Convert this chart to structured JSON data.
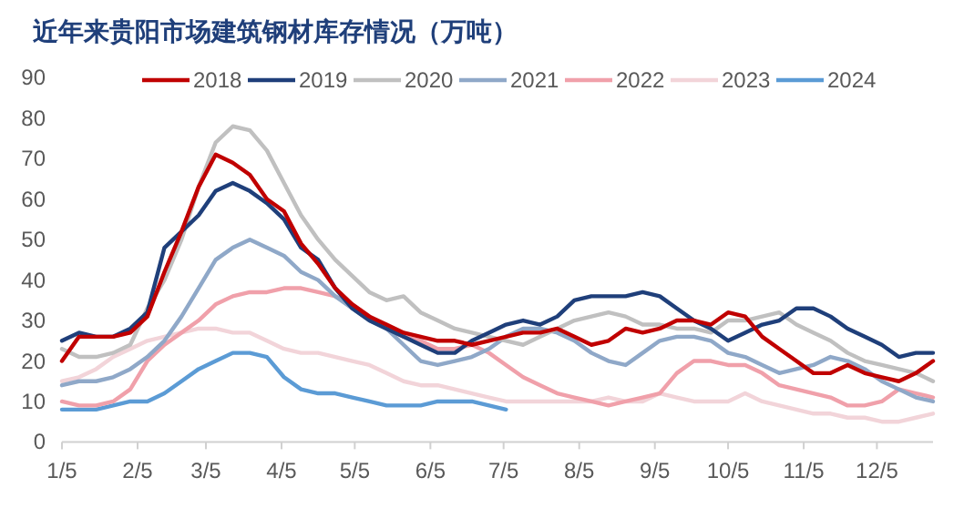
{
  "chart_data": {
    "type": "line",
    "title": "近年来贵阳市场建筑钢材库存情况（万吨）",
    "x": [
      "--01-05",
      "--01-12",
      "--01-19",
      "--01-26",
      "--02-02",
      "--02-09",
      "--02-16",
      "--02-23",
      "--03-02",
      "--03-09",
      "--03-16",
      "--03-23",
      "--03-30",
      "--04-06",
      "--04-13",
      "--04-20",
      "--04-27",
      "--05-04",
      "--05-11",
      "--05-18",
      "--05-25",
      "--06-01",
      "--06-08",
      "--06-15",
      "--06-22",
      "--06-29",
      "--07-06",
      "--07-13",
      "--07-20",
      "--07-27",
      "--08-03",
      "--08-10",
      "--08-17",
      "--08-24",
      "--08-31",
      "--09-07",
      "--09-14",
      "--09-21",
      "--09-28",
      "--10-05",
      "--10-12",
      "--10-19",
      "--10-26",
      "--11-02",
      "--11-09",
      "--11-16",
      "--11-23",
      "--11-30",
      "--12-07",
      "--12-14",
      "--12-21",
      "--12-28"
    ],
    "series": [
      {
        "name": "2018",
        "color": "#c00000",
        "values": [
          20,
          26,
          26,
          26,
          27,
          31,
          42,
          52,
          63,
          71,
          69,
          66,
          60,
          57,
          49,
          44,
          38,
          34,
          31,
          29,
          27,
          26,
          25,
          25,
          24,
          25,
          26,
          27,
          27,
          28,
          26,
          24,
          25,
          28,
          27,
          28,
          30,
          30,
          29,
          32,
          31,
          26,
          23,
          20,
          17,
          17,
          19,
          17,
          16,
          15,
          17,
          20
        ]
      },
      {
        "name": "2019",
        "color": "#1f3f7a",
        "values": [
          25,
          27,
          26,
          26,
          28,
          32,
          48,
          52,
          56,
          62,
          64,
          62,
          59,
          55,
          48,
          45,
          38,
          33,
          30,
          28,
          26,
          24,
          22,
          22,
          25,
          27,
          29,
          30,
          29,
          31,
          35,
          36,
          36,
          36,
          37,
          36,
          33,
          30,
          28,
          25,
          27,
          29,
          30,
          33,
          33,
          31,
          28,
          26,
          24,
          21,
          22,
          22
        ]
      },
      {
        "name": "2020",
        "color": "#c0c0c0",
        "values": [
          23,
          21,
          21,
          22,
          24,
          33,
          40,
          50,
          63,
          74,
          78,
          77,
          72,
          64,
          56,
          50,
          45,
          41,
          37,
          35,
          36,
          32,
          30,
          28,
          27,
          26,
          25,
          24,
          26,
          28,
          30,
          31,
          32,
          31,
          29,
          29,
          28,
          28,
          27,
          30,
          30,
          31,
          32,
          29,
          27,
          25,
          22,
          20,
          19,
          18,
          17,
          15
        ]
      },
      {
        "name": "2021",
        "color": "#8fa8c8",
        "values": [
          14,
          15,
          15,
          16,
          18,
          21,
          25,
          31,
          38,
          45,
          48,
          50,
          48,
          46,
          42,
          40,
          36,
          33,
          30,
          28,
          24,
          20,
          19,
          20,
          21,
          23,
          26,
          28,
          28,
          27,
          25,
          22,
          20,
          19,
          22,
          25,
          26,
          26,
          25,
          22,
          21,
          19,
          17,
          18,
          19,
          21,
          20,
          18,
          15,
          13,
          11,
          10
        ]
      },
      {
        "name": "2022",
        "color": "#f0a0aa",
        "values": [
          10,
          9,
          9,
          10,
          13,
          20,
          24,
          27,
          30,
          34,
          36,
          37,
          37,
          38,
          38,
          37,
          36,
          34,
          31,
          28,
          26,
          25,
          23,
          23,
          24,
          22,
          19,
          16,
          14,
          12,
          11,
          10,
          9,
          10,
          11,
          12,
          17,
          20,
          20,
          19,
          19,
          17,
          14,
          13,
          12,
          11,
          9,
          9,
          10,
          13,
          12,
          11
        ]
      },
      {
        "name": "2023",
        "color": "#f2d4d9",
        "values": [
          15,
          16,
          18,
          21,
          23,
          25,
          26,
          27,
          28,
          28,
          27,
          27,
          25,
          23,
          22,
          22,
          21,
          20,
          19,
          17,
          15,
          14,
          14,
          13,
          12,
          11,
          10,
          10,
          10,
          10,
          10,
          10,
          11,
          10,
          10,
          12,
          11,
          10,
          10,
          10,
          12,
          10,
          9,
          8,
          7,
          7,
          6,
          6,
          5,
          5,
          6,
          7
        ]
      },
      {
        "name": "2024",
        "color": "#5b9bd5",
        "values": [
          8,
          8,
          8,
          9,
          10,
          10,
          12,
          15,
          18,
          20,
          22,
          22,
          21,
          16,
          13,
          12,
          12,
          11,
          10,
          9,
          9,
          9,
          10,
          10,
          10,
          9,
          8,
          null,
          null,
          null,
          null,
          null,
          null,
          null,
          null,
          null,
          null,
          null,
          null,
          null,
          null,
          null,
          null,
          null,
          null,
          null,
          null,
          null,
          null,
          null,
          null,
          null
        ]
      }
    ],
    "xlim": [
      "--01-05",
      "--12-28"
    ],
    "xticks": [
      {
        "value": "--01-05",
        "label": "1/5"
      },
      {
        "value": "--02-05",
        "label": "2/5"
      },
      {
        "value": "--03-05",
        "label": "3/5"
      },
      {
        "value": "--04-05",
        "label": "4/5"
      },
      {
        "value": "--05-05",
        "label": "5/5"
      },
      {
        "value": "--06-05",
        "label": "6/5"
      },
      {
        "value": "--07-05",
        "label": "7/5"
      },
      {
        "value": "--08-05",
        "label": "8/5"
      },
      {
        "value": "--09-05",
        "label": "9/5"
      },
      {
        "value": "--10-05",
        "label": "10/5"
      },
      {
        "value": "--11-05",
        "label": "11/5"
      },
      {
        "value": "--12-05",
        "label": "12/5"
      }
    ],
    "ylim": [
      0,
      90
    ],
    "yticks": [
      0,
      10,
      20,
      30,
      40,
      50,
      60,
      70,
      80,
      90
    ],
    "legend": "top",
    "grid": false,
    "marker": "none",
    "line_style": "solid"
  }
}
